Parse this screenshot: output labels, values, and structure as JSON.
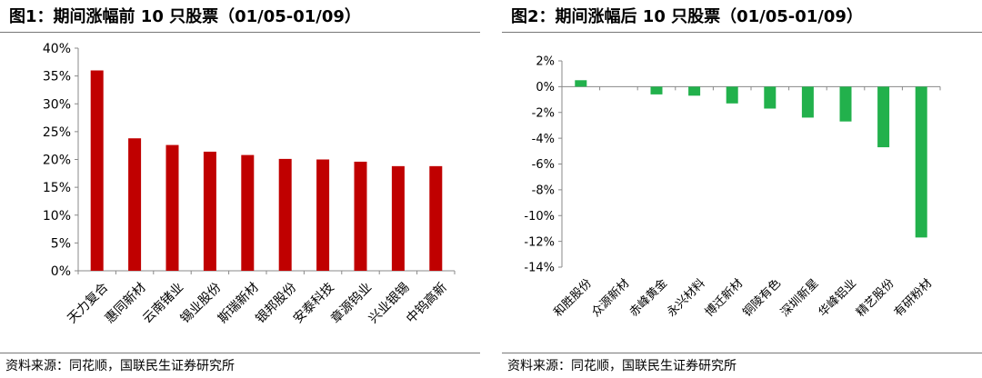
{
  "panels": [
    {
      "title": "图1：期间涨幅前 10 只股票（01/05-01/09）",
      "source": "资料来源：同花顺，国联民生证券研究所"
    },
    {
      "title": "图2：期间涨幅后 10 只股票（01/05-01/09）",
      "source": "资料来源：同花顺，国联民生证券研究所"
    }
  ],
  "chart_data": [
    {
      "type": "bar",
      "categories": [
        "天力复合",
        "惠同新材",
        "云南锗业",
        "锡业股份",
        "斯瑞新材",
        "银邦股份",
        "安泰科技",
        "章源钨业",
        "兴业银锡",
        "中钨高新"
      ],
      "values": [
        36.0,
        23.8,
        22.6,
        21.4,
        20.8,
        20.1,
        20.0,
        19.6,
        18.8,
        18.8
      ],
      "ylim": [
        0,
        40
      ],
      "yticks": [
        "0%",
        "5%",
        "10%",
        "15%",
        "20%",
        "25%",
        "30%",
        "35%",
        "40%"
      ],
      "bar_color": "#C00000",
      "grid": false
    },
    {
      "type": "bar",
      "categories": [
        "和胜股份",
        "众源新材",
        "赤峰黄金",
        "永兴材料",
        "博迁新材",
        "铜陵有色",
        "深圳新星",
        "华峰铝业",
        "精艺股份",
        "有研粉材"
      ],
      "values": [
        0.5,
        0.0,
        -0.6,
        -0.7,
        -1.3,
        -1.7,
        -2.4,
        -2.7,
        -4.7,
        -11.7
      ],
      "ylim": [
        -14,
        2
      ],
      "yticks": [
        "-14%",
        "-12%",
        "-10%",
        "-8%",
        "-6%",
        "-4%",
        "-2%",
        "0%",
        "2%"
      ],
      "bar_color": "#22B14C",
      "grid": false
    }
  ]
}
